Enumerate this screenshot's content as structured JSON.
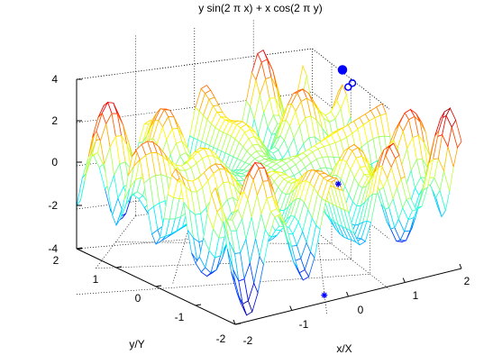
{
  "chart_data": {
    "type": "surface",
    "title": "y sin(2 π x) + x cos(2 π y)",
    "function": "z = y*sin(2*pi*x) + x*cos(2*pi*y)",
    "xlabel": "x/X",
    "ylabel": "y/Y",
    "zlabel": "",
    "xlim": [
      -2,
      2
    ],
    "ylim": [
      -2,
      2
    ],
    "zlim": [
      -4,
      4
    ],
    "x_ticks": [
      "-2",
      "-1",
      "0",
      "1",
      "2"
    ],
    "y_ticks": [
      "-2",
      "-1",
      "0",
      "1",
      "2"
    ],
    "z_ticks": [
      "-4",
      "-2",
      "0",
      "2",
      "4"
    ],
    "grid": true,
    "grid_points": 41,
    "colormap": "jet",
    "markers": [
      {
        "symbol": "circle",
        "x": 1.75,
        "y": 0.5,
        "z": 2.5
      },
      {
        "symbol": "circle",
        "x": 2.0,
        "y": 0.75,
        "z": 2.3
      },
      {
        "symbol": "filled-circle",
        "x": 2.0,
        "y": 1.0,
        "z": 2.7
      },
      {
        "symbol": "star",
        "x": 1.75,
        "y": 0.75,
        "z": -2.3
      },
      {
        "symbol": "star",
        "x": -0.25,
        "y": -1.75,
        "z": -4.0
      }
    ]
  }
}
